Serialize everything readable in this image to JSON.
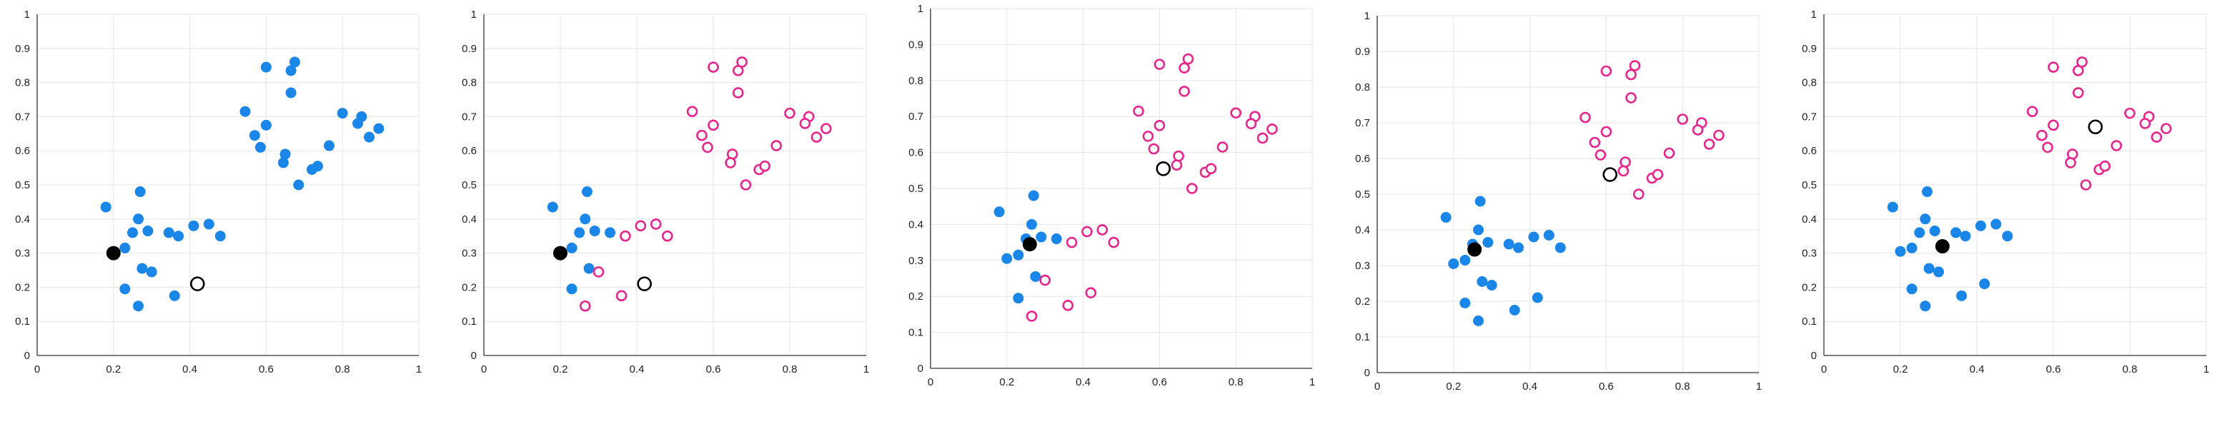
{
  "colors": {
    "cluster_a": "#1a86e8",
    "cluster_b": "#e6268c",
    "centroid": "#000000",
    "grid": "#e6e6e6",
    "axis": "#333333"
  },
  "chart_data": [
    {
      "type": "scatter",
      "title": "",
      "xlabel": "",
      "ylabel": "",
      "xlim": [
        0,
        1
      ],
      "ylim": [
        0,
        1
      ],
      "x_ticks": [
        "0",
        "0.2",
        "0.4",
        "0.6",
        "0.8",
        "1"
      ],
      "y_ticks": [
        "0",
        "0.1",
        "0.2",
        "0.3",
        "0.4",
        "0.5",
        "0.6",
        "0.7",
        "0.8",
        "0.9",
        "1"
      ],
      "grid": true,
      "series": [
        {
          "marker": "filled",
          "color": "#1a86e8",
          "points": [
            [
              0.18,
              0.435
            ],
            [
              0.27,
              0.48
            ],
            [
              0.265,
              0.4
            ],
            [
              0.23,
              0.315
            ],
            [
              0.25,
              0.36
            ],
            [
              0.29,
              0.365
            ],
            [
              0.345,
              0.36
            ],
            [
              0.37,
              0.35
            ],
            [
              0.41,
              0.38
            ],
            [
              0.45,
              0.385
            ],
            [
              0.48,
              0.35
            ],
            [
              0.275,
              0.255
            ],
            [
              0.3,
              0.245
            ],
            [
              0.23,
              0.195
            ],
            [
              0.265,
              0.145
            ],
            [
              0.36,
              0.175
            ],
            [
              0.6,
              0.845
            ],
            [
              0.675,
              0.86
            ],
            [
              0.665,
              0.835
            ],
            [
              0.665,
              0.77
            ],
            [
              0.545,
              0.715
            ],
            [
              0.6,
              0.675
            ],
            [
              0.57,
              0.645
            ],
            [
              0.585,
              0.61
            ],
            [
              0.65,
              0.59
            ],
            [
              0.645,
              0.565
            ],
            [
              0.685,
              0.5
            ],
            [
              0.72,
              0.545
            ],
            [
              0.735,
              0.555
            ],
            [
              0.765,
              0.615
            ],
            [
              0.8,
              0.71
            ],
            [
              0.85,
              0.7
            ],
            [
              0.84,
              0.68
            ],
            [
              0.87,
              0.64
            ],
            [
              0.895,
              0.665
            ]
          ]
        },
        {
          "marker": "centroid-filled",
          "color": "#000000",
          "points": [
            [
              0.2,
              0.3
            ]
          ]
        },
        {
          "marker": "centroid-open",
          "color": "#000000",
          "points": [
            [
              0.42,
              0.21
            ]
          ]
        }
      ]
    },
    {
      "type": "scatter",
      "title": "",
      "xlabel": "",
      "ylabel": "",
      "xlim": [
        0,
        1
      ],
      "ylim": [
        0,
        1
      ],
      "x_ticks": [
        "0",
        "0.2",
        "0.4",
        "0.6",
        "0.8",
        "1"
      ],
      "y_ticks": [
        "0",
        "0.1",
        "0.2",
        "0.3",
        "0.4",
        "0.5",
        "0.6",
        "0.7",
        "0.8",
        "0.9",
        "1"
      ],
      "grid": true,
      "series": [
        {
          "marker": "filled",
          "color": "#1a86e8",
          "points": [
            [
              0.18,
              0.435
            ],
            [
              0.27,
              0.48
            ],
            [
              0.265,
              0.4
            ],
            [
              0.23,
              0.315
            ],
            [
              0.25,
              0.36
            ],
            [
              0.29,
              0.365
            ],
            [
              0.33,
              0.36
            ],
            [
              0.275,
              0.255
            ],
            [
              0.23,
              0.195
            ]
          ]
        },
        {
          "marker": "open",
          "color": "#e6268c",
          "points": [
            [
              0.37,
              0.35
            ],
            [
              0.41,
              0.38
            ],
            [
              0.45,
              0.385
            ],
            [
              0.48,
              0.35
            ],
            [
              0.3,
              0.245
            ],
            [
              0.265,
              0.145
            ],
            [
              0.36,
              0.175
            ],
            [
              0.6,
              0.845
            ],
            [
              0.675,
              0.86
            ],
            [
              0.665,
              0.835
            ],
            [
              0.665,
              0.77
            ],
            [
              0.545,
              0.715
            ],
            [
              0.6,
              0.675
            ],
            [
              0.57,
              0.645
            ],
            [
              0.585,
              0.61
            ],
            [
              0.65,
              0.59
            ],
            [
              0.645,
              0.565
            ],
            [
              0.685,
              0.5
            ],
            [
              0.72,
              0.545
            ],
            [
              0.735,
              0.555
            ],
            [
              0.765,
              0.615
            ],
            [
              0.8,
              0.71
            ],
            [
              0.85,
              0.7
            ],
            [
              0.84,
              0.68
            ],
            [
              0.87,
              0.64
            ],
            [
              0.895,
              0.665
            ]
          ]
        },
        {
          "marker": "centroid-filled",
          "color": "#000000",
          "points": [
            [
              0.2,
              0.3
            ]
          ]
        },
        {
          "marker": "centroid-open",
          "color": "#000000",
          "points": [
            [
              0.42,
              0.21
            ]
          ]
        }
      ]
    },
    {
      "type": "scatter",
      "title": "",
      "xlabel": "",
      "ylabel": "",
      "xlim": [
        0,
        1
      ],
      "ylim": [
        0,
        1
      ],
      "x_ticks": [
        "0",
        "0.2",
        "0.4",
        "0.6",
        "0.8",
        "1"
      ],
      "y_ticks": [
        "0",
        "0.1",
        "0.2",
        "0.3",
        "0.4",
        "0.5",
        "0.6",
        "0.7",
        "0.8",
        "0.9",
        "1"
      ],
      "grid": true,
      "series": [
        {
          "marker": "filled",
          "color": "#1a86e8",
          "points": [
            [
              0.18,
              0.435
            ],
            [
              0.27,
              0.48
            ],
            [
              0.265,
              0.4
            ],
            [
              0.23,
              0.315
            ],
            [
              0.25,
              0.36
            ],
            [
              0.29,
              0.365
            ],
            [
              0.33,
              0.36
            ],
            [
              0.275,
              0.255
            ],
            [
              0.23,
              0.195
            ],
            [
              0.2,
              0.305
            ]
          ]
        },
        {
          "marker": "open",
          "color": "#e6268c",
          "points": [
            [
              0.37,
              0.35
            ],
            [
              0.41,
              0.38
            ],
            [
              0.45,
              0.385
            ],
            [
              0.48,
              0.35
            ],
            [
              0.3,
              0.245
            ],
            [
              0.265,
              0.145
            ],
            [
              0.36,
              0.175
            ],
            [
              0.42,
              0.21
            ],
            [
              0.6,
              0.845
            ],
            [
              0.675,
              0.86
            ],
            [
              0.665,
              0.835
            ],
            [
              0.665,
              0.77
            ],
            [
              0.545,
              0.715
            ],
            [
              0.6,
              0.675
            ],
            [
              0.57,
              0.645
            ],
            [
              0.585,
              0.61
            ],
            [
              0.65,
              0.59
            ],
            [
              0.645,
              0.565
            ],
            [
              0.685,
              0.5
            ],
            [
              0.72,
              0.545
            ],
            [
              0.735,
              0.555
            ],
            [
              0.765,
              0.615
            ],
            [
              0.8,
              0.71
            ],
            [
              0.85,
              0.7
            ],
            [
              0.84,
              0.68
            ],
            [
              0.87,
              0.64
            ],
            [
              0.895,
              0.665
            ]
          ]
        },
        {
          "marker": "centroid-filled",
          "color": "#000000",
          "points": [
            [
              0.26,
              0.345
            ]
          ]
        },
        {
          "marker": "centroid-open",
          "color": "#000000",
          "points": [
            [
              0.61,
              0.555
            ]
          ]
        }
      ]
    },
    {
      "type": "scatter",
      "title": "",
      "xlabel": "",
      "ylabel": "",
      "xlim": [
        0,
        1
      ],
      "ylim": [
        0,
        1
      ],
      "x_ticks": [
        "0",
        "0.2",
        "0.4",
        "0.6",
        "0.8",
        "1"
      ],
      "y_ticks": [
        "0",
        "0.1",
        "0.2",
        "0.3",
        "0.4",
        "0.5",
        "0.6",
        "0.7",
        "0.8",
        "0.9",
        "1"
      ],
      "grid": true,
      "series": [
        {
          "marker": "filled",
          "color": "#1a86e8",
          "points": [
            [
              0.18,
              0.435
            ],
            [
              0.27,
              0.48
            ],
            [
              0.265,
              0.4
            ],
            [
              0.23,
              0.315
            ],
            [
              0.25,
              0.36
            ],
            [
              0.29,
              0.365
            ],
            [
              0.345,
              0.36
            ],
            [
              0.37,
              0.35
            ],
            [
              0.41,
              0.38
            ],
            [
              0.45,
              0.385
            ],
            [
              0.48,
              0.35
            ],
            [
              0.275,
              0.255
            ],
            [
              0.3,
              0.245
            ],
            [
              0.23,
              0.195
            ],
            [
              0.265,
              0.145
            ],
            [
              0.36,
              0.175
            ],
            [
              0.42,
              0.21
            ],
            [
              0.2,
              0.305
            ]
          ]
        },
        {
          "marker": "open",
          "color": "#e6268c",
          "points": [
            [
              0.6,
              0.845
            ],
            [
              0.675,
              0.86
            ],
            [
              0.665,
              0.835
            ],
            [
              0.665,
              0.77
            ],
            [
              0.545,
              0.715
            ],
            [
              0.6,
              0.675
            ],
            [
              0.57,
              0.645
            ],
            [
              0.585,
              0.61
            ],
            [
              0.65,
              0.59
            ],
            [
              0.645,
              0.565
            ],
            [
              0.685,
              0.5
            ],
            [
              0.72,
              0.545
            ],
            [
              0.735,
              0.555
            ],
            [
              0.765,
              0.615
            ],
            [
              0.8,
              0.71
            ],
            [
              0.85,
              0.7
            ],
            [
              0.84,
              0.68
            ],
            [
              0.87,
              0.64
            ],
            [
              0.895,
              0.665
            ]
          ]
        },
        {
          "marker": "centroid-filled",
          "color": "#000000",
          "points": [
            [
              0.255,
              0.345
            ]
          ]
        },
        {
          "marker": "centroid-open",
          "color": "#000000",
          "points": [
            [
              0.61,
              0.555
            ]
          ]
        }
      ]
    },
    {
      "type": "scatter",
      "title": "",
      "xlabel": "",
      "ylabel": "",
      "xlim": [
        0,
        1
      ],
      "ylim": [
        0,
        1
      ],
      "x_ticks": [
        "0",
        "0.2",
        "0.4",
        "0.6",
        "0.8",
        "1"
      ],
      "y_ticks": [
        "0",
        "0.1",
        "0.2",
        "0.3",
        "0.4",
        "0.5",
        "0.6",
        "0.7",
        "0.8",
        "0.9",
        "1"
      ],
      "grid": true,
      "series": [
        {
          "marker": "filled",
          "color": "#1a86e8",
          "points": [
            [
              0.18,
              0.435
            ],
            [
              0.27,
              0.48
            ],
            [
              0.265,
              0.4
            ],
            [
              0.23,
              0.315
            ],
            [
              0.25,
              0.36
            ],
            [
              0.29,
              0.365
            ],
            [
              0.345,
              0.36
            ],
            [
              0.37,
              0.35
            ],
            [
              0.41,
              0.38
            ],
            [
              0.45,
              0.385
            ],
            [
              0.48,
              0.35
            ],
            [
              0.275,
              0.255
            ],
            [
              0.3,
              0.245
            ],
            [
              0.23,
              0.195
            ],
            [
              0.265,
              0.145
            ],
            [
              0.36,
              0.175
            ],
            [
              0.42,
              0.21
            ],
            [
              0.2,
              0.305
            ]
          ]
        },
        {
          "marker": "open",
          "color": "#e6268c",
          "points": [
            [
              0.6,
              0.845
            ],
            [
              0.675,
              0.86
            ],
            [
              0.665,
              0.835
            ],
            [
              0.665,
              0.77
            ],
            [
              0.545,
              0.715
            ],
            [
              0.6,
              0.675
            ],
            [
              0.57,
              0.645
            ],
            [
              0.585,
              0.61
            ],
            [
              0.65,
              0.59
            ],
            [
              0.645,
              0.565
            ],
            [
              0.685,
              0.5
            ],
            [
              0.72,
              0.545
            ],
            [
              0.735,
              0.555
            ],
            [
              0.765,
              0.615
            ],
            [
              0.8,
              0.71
            ],
            [
              0.85,
              0.7
            ],
            [
              0.84,
              0.68
            ],
            [
              0.87,
              0.64
            ],
            [
              0.895,
              0.665
            ]
          ]
        },
        {
          "marker": "centroid-filled",
          "color": "#000000",
          "points": [
            [
              0.31,
              0.32
            ]
          ]
        },
        {
          "marker": "centroid-open",
          "color": "#000000",
          "points": [
            [
              0.71,
              0.67
            ]
          ]
        }
      ]
    }
  ]
}
